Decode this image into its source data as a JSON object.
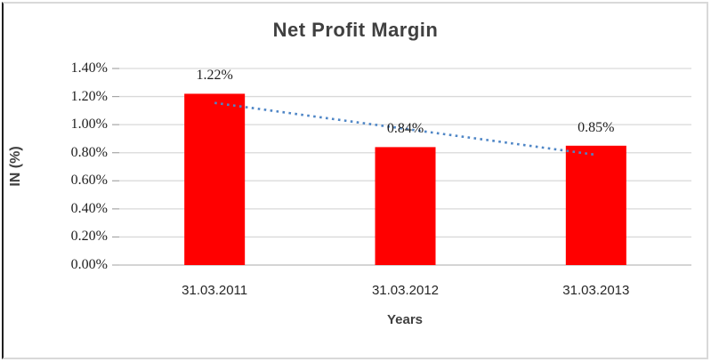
{
  "frame": {
    "background": "#ffffff",
    "border_color": "#d9d9d9",
    "border_left_color": "#1f1f1f"
  },
  "chart_data": {
    "type": "bar",
    "title": "Net Profit Margin",
    "xlabel": "Years",
    "ylabel": "IN (%)",
    "categories": [
      "31.03.2011",
      "31.03.2012",
      "31.03.2013"
    ],
    "values": [
      1.22,
      0.84,
      0.85
    ],
    "data_labels": [
      "1.22%",
      "0.84%",
      "0.85%"
    ],
    "ylim": [
      0,
      1.4
    ],
    "yticks": [
      {
        "label": "0.00%",
        "value": 0.0
      },
      {
        "label": "0.20%",
        "value": 0.2
      },
      {
        "label": "0.40%",
        "value": 0.4
      },
      {
        "label": "0.60%",
        "value": 0.6
      },
      {
        "label": "0.80%",
        "value": 0.8
      },
      {
        "label": "1.00%",
        "value": 1.0
      },
      {
        "label": "1.20%",
        "value": 1.2
      },
      {
        "label": "1.40%",
        "value": 1.4
      }
    ],
    "grid": true,
    "legend": "none",
    "bar_color": "#ff0000",
    "gridline_color": "#d9d9d9",
    "axis_line_color": "#c6c6c6",
    "tick_mark_color": "#a6a6a6",
    "title_color": "#404040",
    "label_color": "#1f1f1f",
    "trendline": {
      "type": "linear",
      "style": "dotted",
      "color": "#4f86c6",
      "points": [
        {
          "category_index": 0,
          "value": 1.155
        },
        {
          "category_index": 2,
          "value": 0.785
        }
      ]
    }
  }
}
